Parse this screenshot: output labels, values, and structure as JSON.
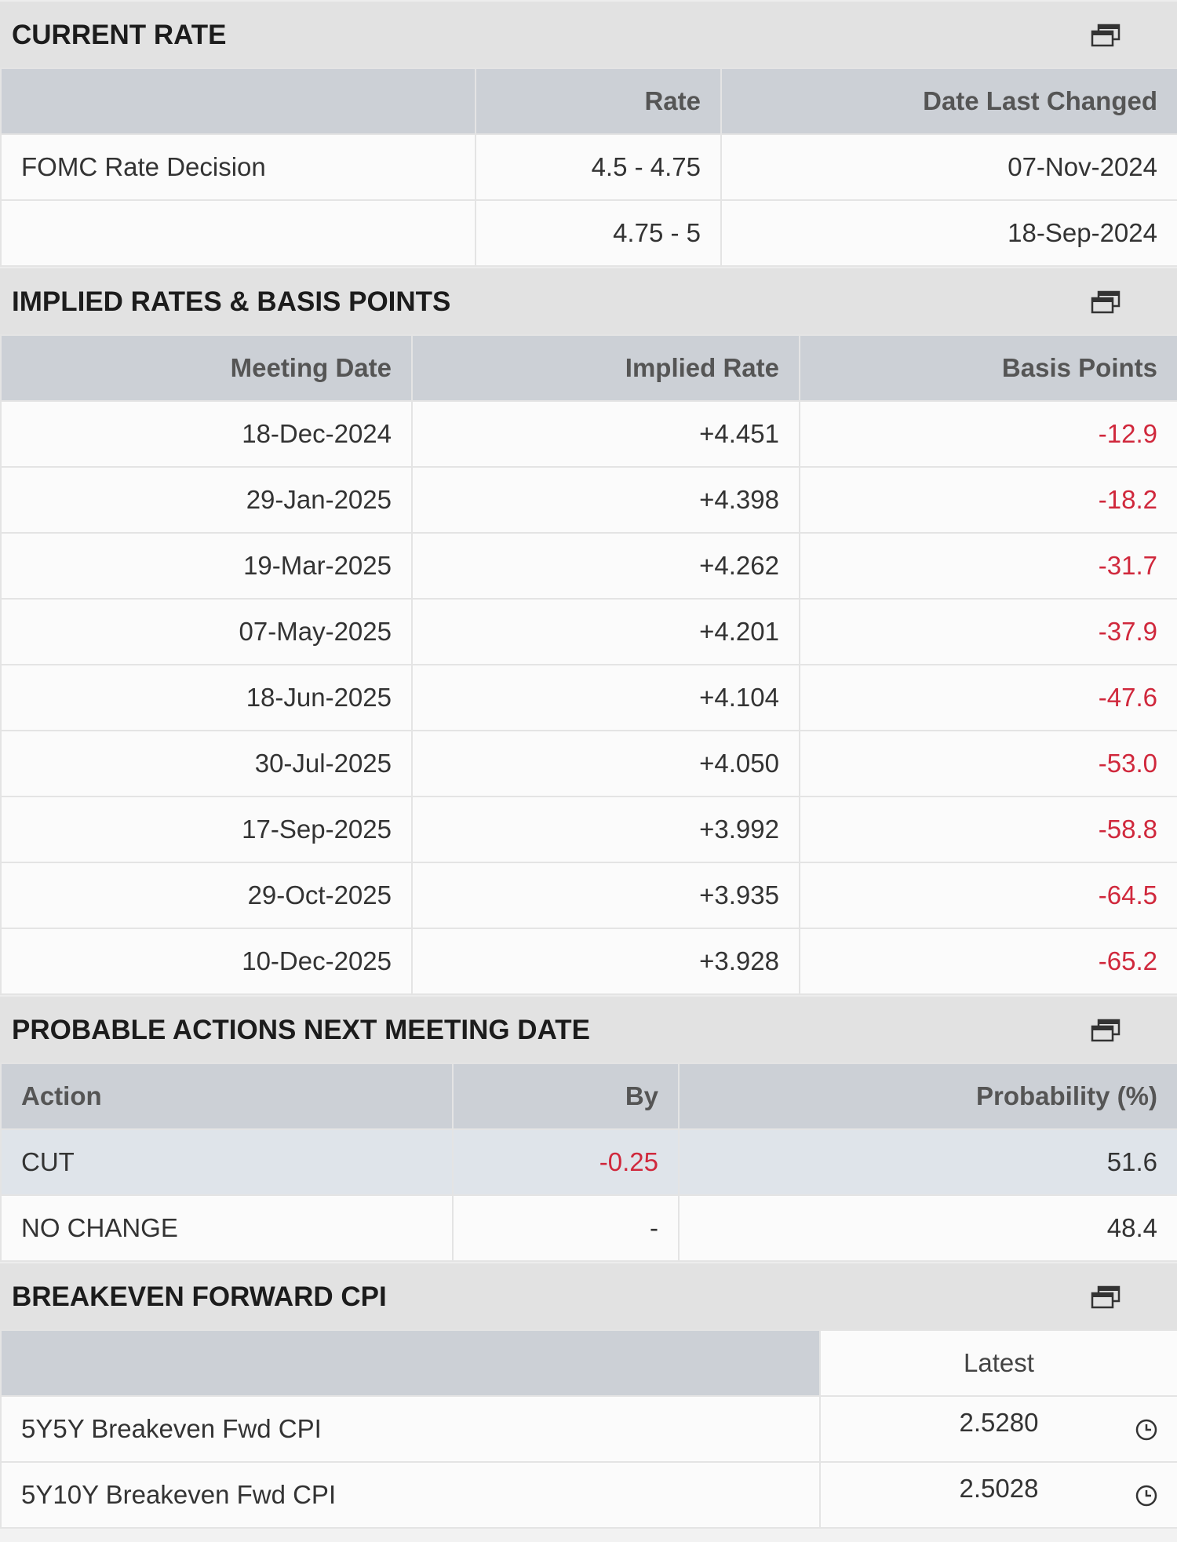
{
  "sections": [
    {
      "title": "CURRENT RATE",
      "columns": [
        null,
        "Rate",
        "Date Last Changed"
      ],
      "rows": [
        [
          "FOMC Rate Decision",
          "4.5 - 4.75",
          "07-Nov-2024"
        ],
        [
          null,
          "4.75 - 5",
          "18-Sep-2024"
        ]
      ]
    },
    {
      "title": "IMPLIED RATES & BASIS POINTS",
      "columns": [
        "Meeting Date",
        "Implied Rate",
        "Basis Points"
      ],
      "rows": [
        [
          "18-Dec-2024",
          "+4.451",
          "-12.9"
        ],
        [
          "29-Jan-2025",
          "+4.398",
          "-18.2"
        ],
        [
          "19-Mar-2025",
          "+4.262",
          "-31.7"
        ],
        [
          "07-May-2025",
          "+4.201",
          "-37.9"
        ],
        [
          "18-Jun-2025",
          "+4.104",
          "-47.6"
        ],
        [
          "30-Jul-2025",
          "+4.050",
          "-53.0"
        ],
        [
          "17-Sep-2025",
          "+3.992",
          "-58.8"
        ],
        [
          "29-Oct-2025",
          "+3.935",
          "-64.5"
        ],
        [
          "10-Dec-2025",
          "+3.928",
          "-65.2"
        ]
      ]
    },
    {
      "title": "PROBABLE ACTIONS NEXT MEETING DATE",
      "columns": [
        "Action",
        "By",
        "Probability (%)"
      ],
      "rows": [
        [
          "CUT",
          "-0.25",
          "51.6"
        ],
        [
          "NO CHANGE",
          "-",
          "48.4"
        ]
      ]
    },
    {
      "title": "BREAKEVEN FORWARD CPI",
      "columns": [
        null,
        "Latest"
      ],
      "rows": [
        [
          "5Y5Y Breakeven Fwd CPI",
          "2.5280"
        ],
        [
          "5Y10Y Breakeven Fwd CPI",
          "2.5028"
        ]
      ]
    }
  ]
}
